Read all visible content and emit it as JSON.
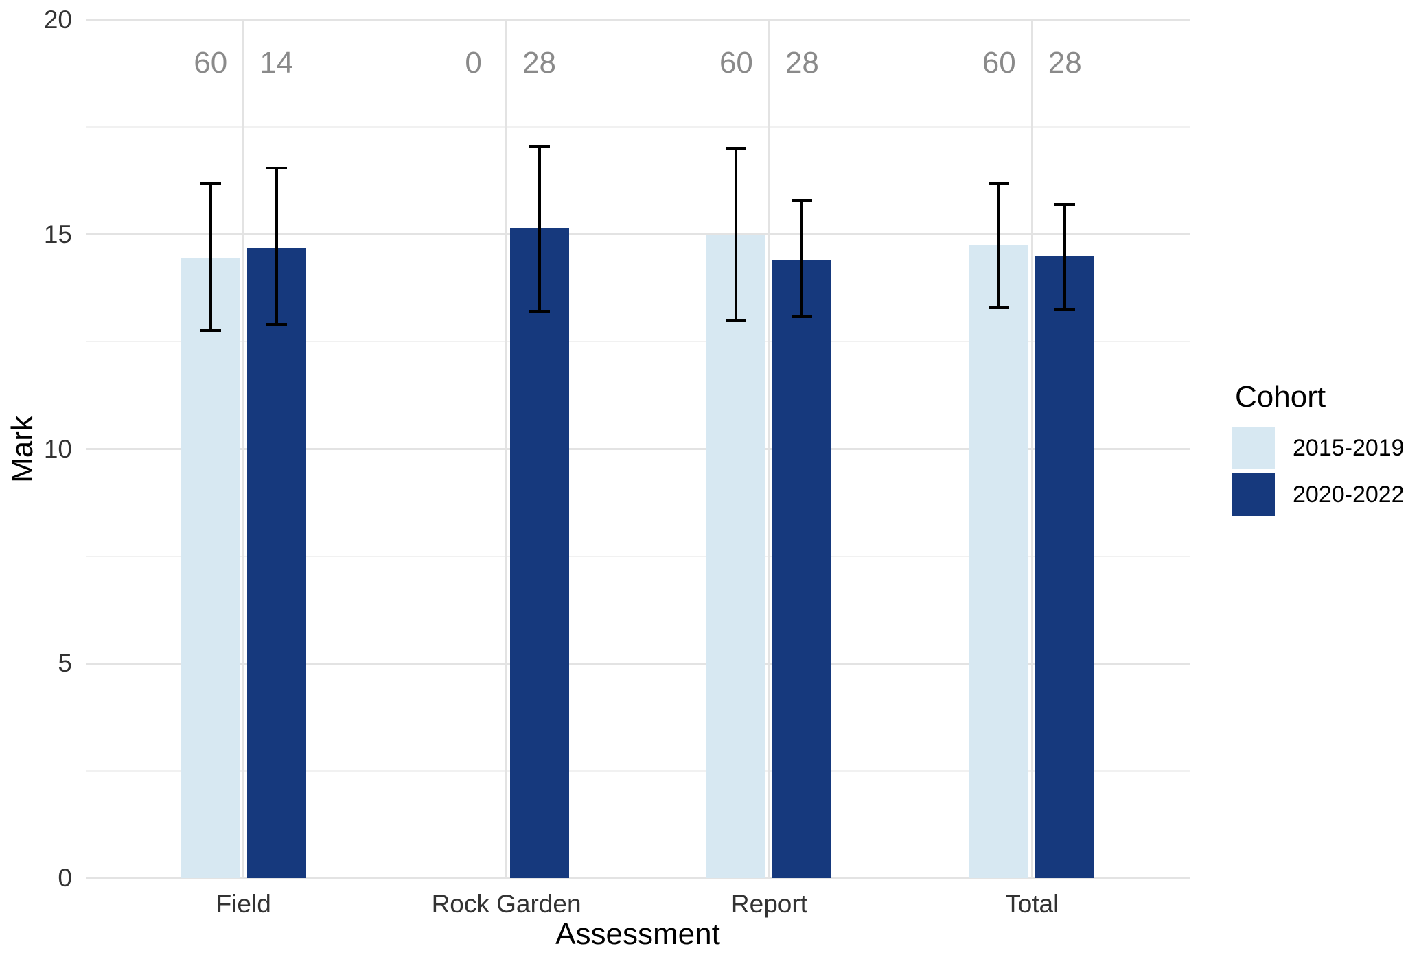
{
  "chart_data": {
    "type": "bar",
    "title": "",
    "xlabel": "Assessment",
    "ylabel": "Mark",
    "ylim": [
      0,
      20
    ],
    "yticks": [
      0,
      5,
      10,
      15,
      20
    ],
    "yminor": [
      2.5,
      7.5,
      12.5,
      17.5
    ],
    "categories": [
      "Field",
      "Rock Garden",
      "Report",
      "Total"
    ],
    "legend_title": "Cohort",
    "legend_position": "right",
    "grid": "horizontal major+minor lines, vertical major line at each category center, white background",
    "series": [
      {
        "name": "2015-2019",
        "color": "#d7e8f2",
        "n_labels": [
          "60",
          "0",
          "60",
          "60"
        ],
        "means": [
          14.45,
          null,
          15.0,
          14.75
        ],
        "ci_low": [
          12.75,
          null,
          13.0,
          13.3
        ],
        "ci_high": [
          16.2,
          null,
          17.0,
          16.2
        ]
      },
      {
        "name": "2020-2022",
        "color": "#16397d",
        "n_labels": [
          "14",
          "28",
          "28",
          "28"
        ],
        "means": [
          14.7,
          15.15,
          14.4,
          14.5
        ],
        "ci_low": [
          12.9,
          13.2,
          13.1,
          13.25
        ],
        "ci_high": [
          16.55,
          17.05,
          15.8,
          15.7
        ]
      }
    ],
    "n_label_y": 19,
    "n_label_color": "#8a8a8a",
    "errorbar_color": "#000000",
    "axis_text_color": "#333333",
    "title_text_color": "#000000",
    "grid_major_color": "#e3e3e3",
    "grid_minor_color": "#f1f1f1"
  }
}
